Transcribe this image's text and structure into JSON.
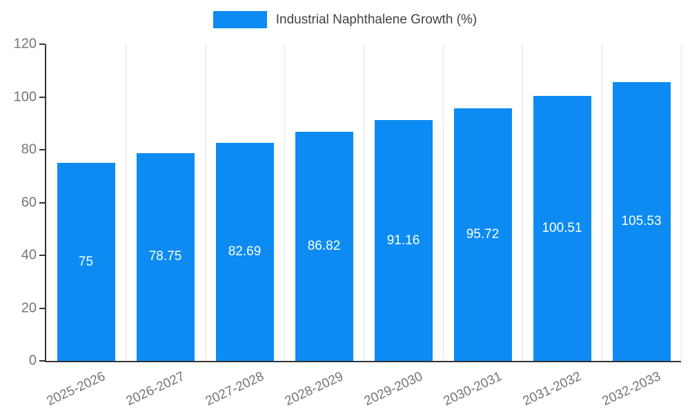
{
  "legend": {
    "label": "Industrial Naphthalene Growth (%)"
  },
  "colors": {
    "bar": "#0d8bf2",
    "grid": "#e2e2e2",
    "axis": "#333333",
    "tick_label": "#757575",
    "bar_label": "#ffffff",
    "legend_text": "#424242"
  },
  "chart_data": {
    "type": "bar",
    "title": "",
    "legend": "Industrial Naphthalene Growth (%)",
    "categories": [
      "2025-2026",
      "2026-2027",
      "2027-2028",
      "2028-2029",
      "2029-2030",
      "2030-2031",
      "2031-2032",
      "2032-2033"
    ],
    "values": [
      75,
      78.75,
      82.69,
      86.82,
      91.16,
      95.72,
      100.51,
      105.53
    ],
    "xlabel": "",
    "ylabel": "",
    "ylim": [
      0,
      120
    ],
    "yticks": [
      0,
      20,
      40,
      60,
      80,
      100,
      120
    ],
    "grid": "vertical-only",
    "legend_position": "top-center",
    "bar_value_labels": "inside-center-white"
  }
}
